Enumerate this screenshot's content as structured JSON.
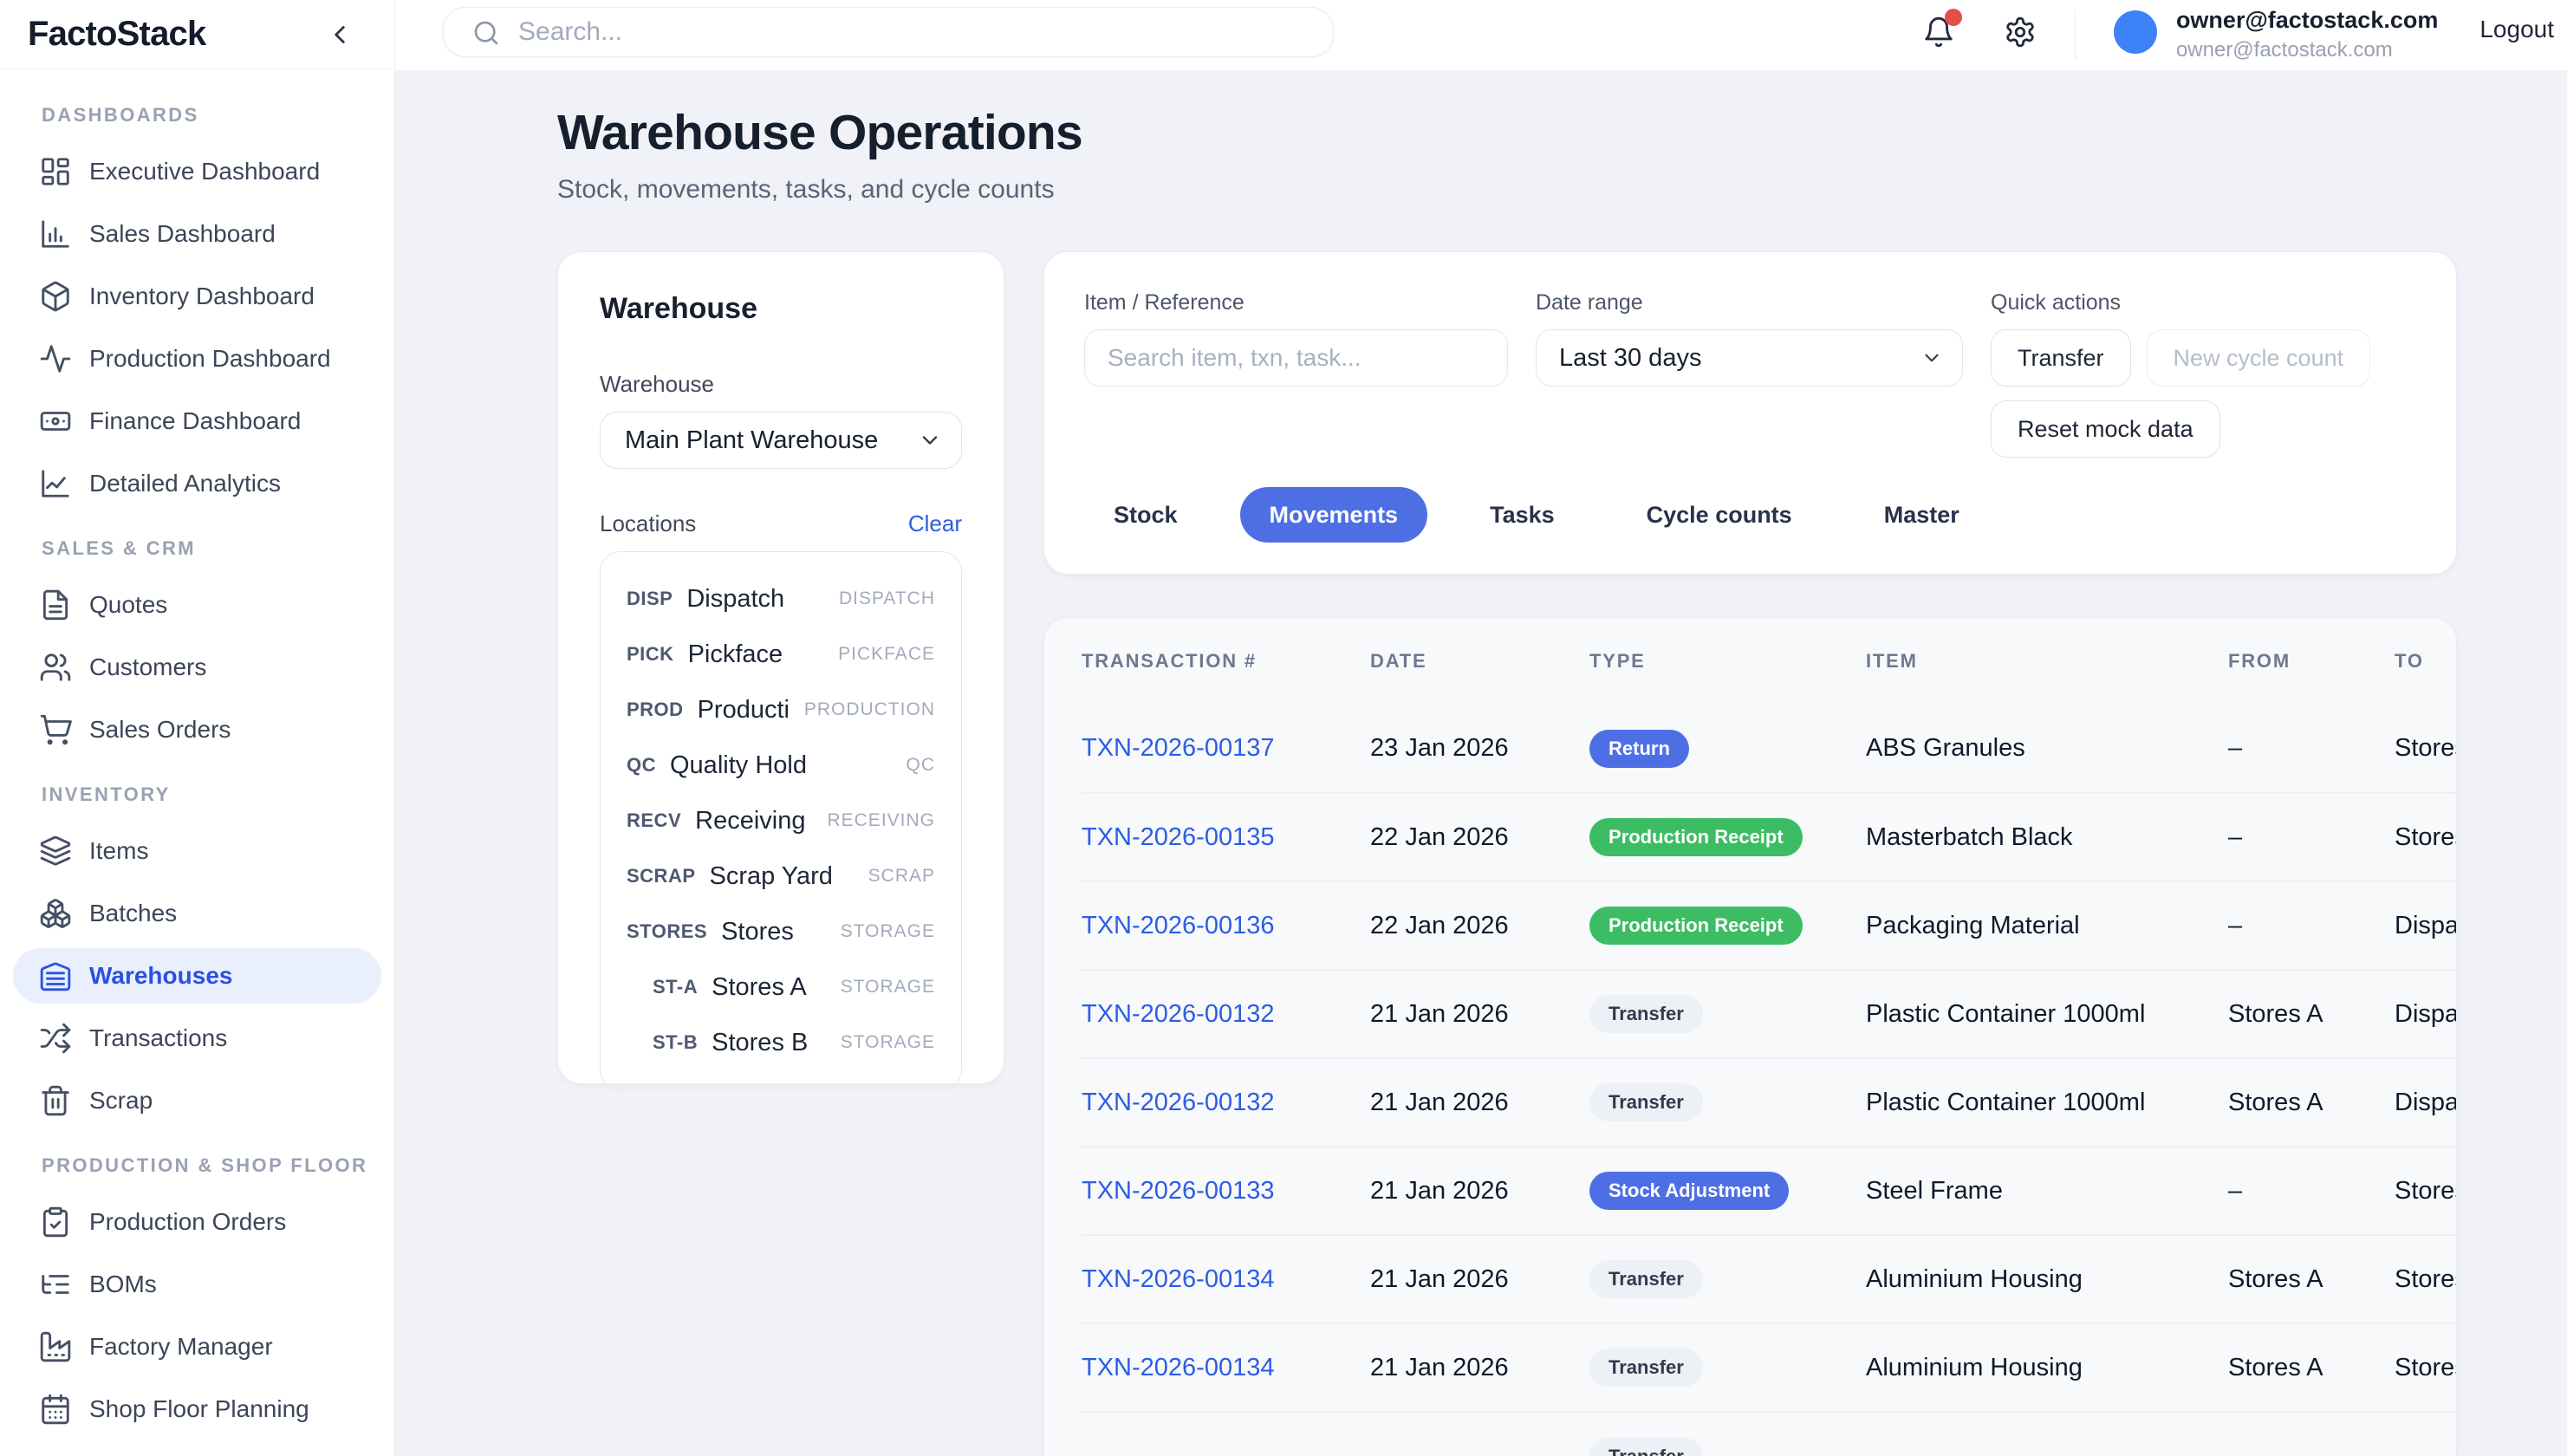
{
  "app": {
    "name": "FactoStack"
  },
  "topbar": {
    "search_placeholder": "Search...",
    "user_name": "owner@factostack.com",
    "user_email": "owner@factostack.com",
    "logout_label": "Logout"
  },
  "colors": {
    "accent_blue": "#4e6fe4",
    "sidebar_active_blue": "#2b50e2",
    "link_blue": "#2d5ce5",
    "badge_green": "#3cbd63",
    "avatar_blue": "#3e82f7",
    "notification_red": "#e44f4b",
    "page_background": "#f0f2f7"
  },
  "sidebar": {
    "sections": [
      {
        "label": "DASHBOARDS",
        "items": [
          {
            "label": "Executive Dashboard",
            "icon": "layout-dashboard",
            "active": false
          },
          {
            "label": "Sales Dashboard",
            "icon": "bar-chart",
            "active": false
          },
          {
            "label": "Inventory Dashboard",
            "icon": "package",
            "active": false
          },
          {
            "label": "Production Dashboard",
            "icon": "activity",
            "active": false
          },
          {
            "label": "Finance Dashboard",
            "icon": "banknote",
            "active": false
          },
          {
            "label": "Detailed Analytics",
            "icon": "line-chart",
            "active": false
          }
        ]
      },
      {
        "label": "SALES & CRM",
        "items": [
          {
            "label": "Quotes",
            "icon": "file-text",
            "active": false
          },
          {
            "label": "Customers",
            "icon": "users",
            "active": false
          },
          {
            "label": "Sales Orders",
            "icon": "shopping-cart",
            "active": false
          }
        ]
      },
      {
        "label": "INVENTORY",
        "items": [
          {
            "label": "Items",
            "icon": "layers",
            "active": false
          },
          {
            "label": "Batches",
            "icon": "boxes",
            "active": false
          },
          {
            "label": "Warehouses",
            "icon": "warehouse",
            "active": true
          },
          {
            "label": "Transactions",
            "icon": "shuffle",
            "active": false
          },
          {
            "label": "Scrap",
            "icon": "trash",
            "active": false
          }
        ]
      },
      {
        "label": "PRODUCTION & SHOP FLOOR",
        "items": [
          {
            "label": "Production Orders",
            "icon": "clipboard-check",
            "active": false
          },
          {
            "label": "BOMs",
            "icon": "list-tree",
            "active": false
          },
          {
            "label": "Factory Manager",
            "icon": "factory",
            "active": false
          },
          {
            "label": "Shop Floor Planning",
            "icon": "calendar",
            "active": false
          }
        ]
      }
    ]
  },
  "page": {
    "title": "Warehouse Operations",
    "subtitle": "Stock, movements, tasks, and cycle counts"
  },
  "warehouse_panel": {
    "heading": "Warehouse",
    "select_label": "Warehouse",
    "selected_warehouse": "Main Plant Warehouse",
    "locations_label": "Locations",
    "clear_label": "Clear",
    "locations": [
      {
        "code": "DISP",
        "name": "Dispatch",
        "type": "DISPATCH",
        "indent": false
      },
      {
        "code": "PICK",
        "name": "Pickface",
        "type": "PICKFACE",
        "indent": false
      },
      {
        "code": "PROD",
        "name": "Production Sta...",
        "type": "PRODUCTION",
        "indent": false
      },
      {
        "code": "QC",
        "name": "Quality Hold",
        "type": "QC",
        "indent": false
      },
      {
        "code": "RECV",
        "name": "Receiving",
        "type": "RECEIVING",
        "indent": false
      },
      {
        "code": "SCRAP",
        "name": "Scrap Yard",
        "type": "SCRAP",
        "indent": false
      },
      {
        "code": "STORES",
        "name": "Stores",
        "type": "STORAGE",
        "indent": false
      },
      {
        "code": "ST-A",
        "name": "Stores A",
        "type": "STORAGE",
        "indent": true
      },
      {
        "code": "ST-B",
        "name": "Stores B",
        "type": "STORAGE",
        "indent": true
      }
    ]
  },
  "filters": {
    "item_label": "Item / Reference",
    "item_placeholder": "Search item, txn, task...",
    "date_label": "Date range",
    "date_value": "Last 30 days",
    "quick_actions_label": "Quick actions",
    "transfer_label": "Transfer",
    "new_cycle_count_label": "New cycle count",
    "reset_label": "Reset mock data"
  },
  "tabs": [
    {
      "label": "Stock",
      "active": false
    },
    {
      "label": "Movements",
      "active": true
    },
    {
      "label": "Tasks",
      "active": false
    },
    {
      "label": "Cycle counts",
      "active": false
    },
    {
      "label": "Master",
      "active": false
    }
  ],
  "movements_table": {
    "columns": [
      "TRANSACTION #",
      "DATE",
      "TYPE",
      "ITEM",
      "FROM",
      "TO"
    ],
    "rows": [
      {
        "txn": "TXN-2026-00137",
        "date": "23 Jan 2026",
        "type": "Return",
        "type_color": "blue",
        "item": "ABS Granules",
        "from": "–",
        "to": "Stores"
      },
      {
        "txn": "TXN-2026-00135",
        "date": "22 Jan 2026",
        "type": "Production Receipt",
        "type_color": "green",
        "item": "Masterbatch Black",
        "from": "–",
        "to": "Stores"
      },
      {
        "txn": "TXN-2026-00136",
        "date": "22 Jan 2026",
        "type": "Production Receipt",
        "type_color": "green",
        "item": "Packaging Material",
        "from": "–",
        "to": "Dispatch"
      },
      {
        "txn": "TXN-2026-00132",
        "date": "21 Jan 2026",
        "type": "Transfer",
        "type_color": "gray",
        "item": "Plastic Container 1000ml",
        "from": "Stores A",
        "to": "Dispatch"
      },
      {
        "txn": "TXN-2026-00132",
        "date": "21 Jan 2026",
        "type": "Transfer",
        "type_color": "gray",
        "item": "Plastic Container 1000ml",
        "from": "Stores A",
        "to": "Dispatch"
      },
      {
        "txn": "TXN-2026-00133",
        "date": "21 Jan 2026",
        "type": "Stock Adjustment",
        "type_color": "blue",
        "item": "Steel Frame",
        "from": "–",
        "to": "Stores"
      },
      {
        "txn": "TXN-2026-00134",
        "date": "21 Jan 2026",
        "type": "Transfer",
        "type_color": "gray",
        "item": "Aluminium Housing",
        "from": "Stores A",
        "to": "Stores"
      },
      {
        "txn": "TXN-2026-00134",
        "date": "21 Jan 2026",
        "type": "Transfer",
        "type_color": "gray",
        "item": "Aluminium Housing",
        "from": "Stores A",
        "to": "Stores"
      },
      {
        "txn": "",
        "date": "",
        "type": "Transfer",
        "type_color": "gray",
        "item": "",
        "from": "",
        "to": ""
      }
    ]
  }
}
